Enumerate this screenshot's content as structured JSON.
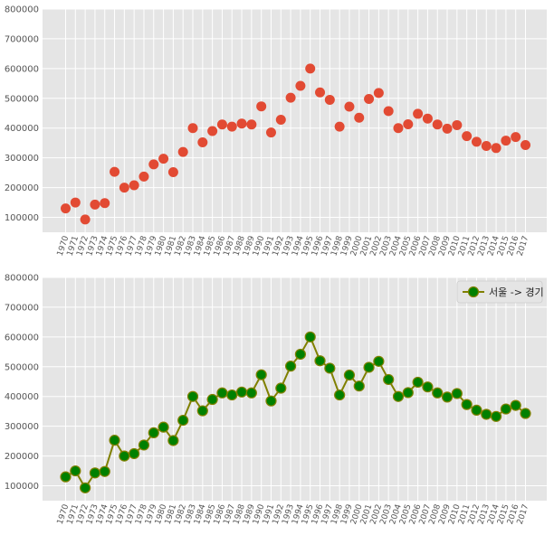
{
  "chart_data": [
    {
      "type": "scatter",
      "title": "",
      "xlabel": "",
      "ylabel": "",
      "x": [
        "1970",
        "1971",
        "1972",
        "1973",
        "1974",
        "1975",
        "1976",
        "1977",
        "1978",
        "1979",
        "1980",
        "1981",
        "1982",
        "1983",
        "1984",
        "1985",
        "1986",
        "1987",
        "1988",
        "1989",
        "1990",
        "1991",
        "1992",
        "1993",
        "1994",
        "1995",
        "1996",
        "1997",
        "1998",
        "1999",
        "2000",
        "2001",
        "2002",
        "2003",
        "2004",
        "2005",
        "2006",
        "2007",
        "2008",
        "2009",
        "2010",
        "2011",
        "2012",
        "2013",
        "2014",
        "2015",
        "2016",
        "2017"
      ],
      "series": [
        {
          "values": [
            130000,
            150000,
            93000,
            143000,
            148000,
            253000,
            200000,
            208000,
            237000,
            278000,
            297000,
            252000,
            320000,
            400000,
            352000,
            390000,
            412000,
            405000,
            415000,
            412000,
            473000,
            385000,
            428000,
            502000,
            542000,
            600000,
            520000,
            495000,
            405000,
            472000,
            435000,
            498000,
            518000,
            457000,
            400000,
            413000,
            448000,
            432000,
            412000,
            398000,
            410000,
            373000,
            354000,
            340000,
            333000,
            358000,
            370000,
            343000
          ],
          "color": "#e24a33"
        }
      ],
      "ylim": [
        50000,
        800000
      ],
      "yticks": [
        100000,
        200000,
        300000,
        400000,
        500000,
        600000,
        700000,
        800000
      ],
      "grid": true,
      "legend": "none"
    },
    {
      "type": "line",
      "title": "",
      "xlabel": "",
      "ylabel": "",
      "x": [
        "1970",
        "1971",
        "1972",
        "1973",
        "1974",
        "1975",
        "1976",
        "1977",
        "1978",
        "1979",
        "1980",
        "1981",
        "1982",
        "1983",
        "1984",
        "1985",
        "1986",
        "1987",
        "1988",
        "1989",
        "1990",
        "1991",
        "1992",
        "1993",
        "1994",
        "1995",
        "1996",
        "1997",
        "1998",
        "1999",
        "2000",
        "2001",
        "2002",
        "2003",
        "2004",
        "2005",
        "2006",
        "2007",
        "2008",
        "2009",
        "2010",
        "2011",
        "2012",
        "2013",
        "2014",
        "2015",
        "2016",
        "2017"
      ],
      "series": [
        {
          "name": "서울 -> 경기",
          "values": [
            130000,
            150000,
            93000,
            143000,
            148000,
            253000,
            200000,
            208000,
            237000,
            278000,
            297000,
            252000,
            320000,
            400000,
            352000,
            390000,
            412000,
            405000,
            415000,
            412000,
            473000,
            385000,
            428000,
            502000,
            542000,
            600000,
            520000,
            495000,
            405000,
            472000,
            435000,
            498000,
            518000,
            457000,
            400000,
            413000,
            448000,
            432000,
            412000,
            398000,
            410000,
            373000,
            354000,
            340000,
            333000,
            358000,
            370000,
            343000
          ],
          "line_color": "#808000",
          "marker_color": "#008000",
          "marker": "circle"
        }
      ],
      "ylim": [
        50000,
        800000
      ],
      "yticks": [
        100000,
        200000,
        300000,
        400000,
        500000,
        600000,
        700000,
        800000
      ],
      "grid": true,
      "legend": "top-right"
    }
  ]
}
